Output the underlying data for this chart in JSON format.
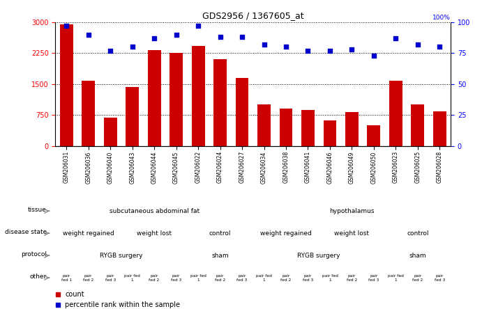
{
  "title": "GDS2956 / 1367605_at",
  "samples": [
    "GSM206031",
    "GSM206036",
    "GSM206040",
    "GSM206043",
    "GSM206044",
    "GSM206045",
    "GSM206022",
    "GSM206024",
    "GSM206027",
    "GSM206034",
    "GSM206038",
    "GSM206041",
    "GSM206046",
    "GSM206049",
    "GSM206050",
    "GSM206023",
    "GSM206025",
    "GSM206028"
  ],
  "counts": [
    2950,
    1580,
    680,
    1430,
    2320,
    2250,
    2430,
    2100,
    1650,
    1000,
    900,
    870,
    620,
    820,
    500,
    1580,
    1000,
    830
  ],
  "percentiles": [
    97,
    90,
    77,
    80,
    87,
    90,
    97,
    88,
    88,
    82,
    80,
    77,
    77,
    78,
    73,
    87,
    82,
    80
  ],
  "ylim_left": [
    0,
    3000
  ],
  "ylim_right": [
    0,
    100
  ],
  "yticks_left": [
    0,
    750,
    1500,
    2250,
    3000
  ],
  "yticks_right": [
    0,
    25,
    50,
    75,
    100
  ],
  "bar_color": "#cc0000",
  "dot_color": "#0000cc",
  "tissue_row": {
    "label": "tissue",
    "segments": [
      {
        "text": "subcutaneous abdominal fat",
        "start": 0,
        "end": 9,
        "color": "#99dd99"
      },
      {
        "text": "hypothalamus",
        "start": 9,
        "end": 18,
        "color": "#55cc55"
      }
    ]
  },
  "disease_row": {
    "label": "disease state",
    "segments": [
      {
        "text": "weight regained",
        "start": 0,
        "end": 3,
        "color": "#aaccff"
      },
      {
        "text": "weight lost",
        "start": 3,
        "end": 6,
        "color": "#aaccff"
      },
      {
        "text": "control",
        "start": 6,
        "end": 9,
        "color": "#aaccff"
      },
      {
        "text": "weight regained",
        "start": 9,
        "end": 12,
        "color": "#aaccff"
      },
      {
        "text": "weight lost",
        "start": 12,
        "end": 15,
        "color": "#aaccff"
      },
      {
        "text": "control",
        "start": 15,
        "end": 18,
        "color": "#aaccff"
      }
    ]
  },
  "protocol_row": {
    "label": "protocol",
    "segments": [
      {
        "text": "RYGB surgery",
        "start": 0,
        "end": 6,
        "color": "#ee66ee"
      },
      {
        "text": "sham",
        "start": 6,
        "end": 9,
        "color": "#ee66ee"
      },
      {
        "text": "RYGB surgery",
        "start": 9,
        "end": 15,
        "color": "#ee66ee"
      },
      {
        "text": "sham",
        "start": 15,
        "end": 18,
        "color": "#ee66ee"
      }
    ]
  },
  "other_row": {
    "label": "other",
    "cells": [
      "pair\nfed 1",
      "pair\nfed 2",
      "pair\nfed 3",
      "pair fed\n1",
      "pair\nfed 2",
      "pair\nfed 3",
      "pair fed\n1",
      "pair\nfed 2",
      "pair\nfed 3",
      "pair fed\n1",
      "pair\nfed 2",
      "pair\nfed 3",
      "pair fed\n1",
      "pair\nfed 2",
      "pair\nfed 3",
      "pair fed\n1",
      "pair\nfed 2",
      "pair\nfed 3"
    ],
    "color": "#ddaa55"
  },
  "legend": [
    {
      "color": "#cc0000",
      "label": "count"
    },
    {
      "color": "#0000cc",
      "label": "percentile rank within the sample"
    }
  ]
}
